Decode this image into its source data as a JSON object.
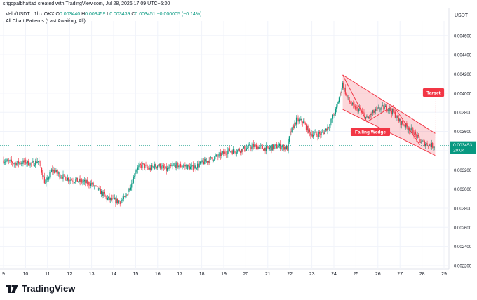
{
  "header": {
    "author_line": "srigopalbhattad created with TradingView.com, Jul 28, 2026 17:09 UTC+5:30"
  },
  "legend": {
    "symbol": "Velo/USDT · 1h · OKX",
    "open_label": "O",
    "open": "0.003440",
    "high_label": "H",
    "high": "0.003459",
    "low_label": "L",
    "low": "0.003439",
    "close_label": "C",
    "close": "0.003451",
    "change": "−0.000005 (−0.14%)",
    "indicator": "All Chart Patterns (Last Awaiting, All)"
  },
  "price_axis": {
    "currency": "USDT",
    "last_price": "0.003453",
    "countdown": "20:04"
  },
  "annotations": {
    "pattern_label": "Falling Wedge",
    "target_label": "Target"
  },
  "branding": {
    "name": "TradingView"
  },
  "colors": {
    "up": "#089981",
    "down": "#f23645",
    "wedge_fill": "#f2364533",
    "label_bg": "#f23645",
    "grid": "#f0f3fa",
    "axis_text": "#131722"
  },
  "chart_data": {
    "type": "candlestick",
    "title": "Velo/USDT · 1h · OKX",
    "ylim": [
      0.0022,
      0.0047
    ],
    "y_ticks": [
      "0.004600",
      "0.004400",
      "0.004200",
      "0.004000",
      "0.003800",
      "0.003600",
      "0.003400",
      "0.003200",
      "0.003000",
      "0.002800",
      "0.002600",
      "0.002400",
      "0.002200"
    ],
    "x_ticks": [
      "9",
      "10",
      "11",
      "12",
      "13",
      "14",
      "15",
      "16",
      "17",
      "18",
      "19",
      "20",
      "21",
      "22",
      "23",
      "24",
      "25",
      "26",
      "27",
      "28",
      "29"
    ],
    "grid": true,
    "close_path": [
      [
        9.0,
        0.0033
      ],
      [
        9.5,
        0.00327
      ],
      [
        10.0,
        0.00328
      ],
      [
        10.3,
        0.00326
      ],
      [
        10.6,
        0.0033
      ],
      [
        10.9,
        0.00305
      ],
      [
        11.0,
        0.0031
      ],
      [
        11.2,
        0.0032
      ],
      [
        11.6,
        0.00314
      ],
      [
        12.0,
        0.0031
      ],
      [
        12.5,
        0.00308
      ],
      [
        13.0,
        0.00305
      ],
      [
        13.4,
        0.00297
      ],
      [
        13.7,
        0.0029
      ],
      [
        14.0,
        0.00288
      ],
      [
        14.3,
        0.00287
      ],
      [
        14.5,
        0.0029
      ],
      [
        14.7,
        0.003
      ],
      [
        14.85,
        0.00308
      ],
      [
        15.0,
        0.0032
      ],
      [
        15.3,
        0.00325
      ],
      [
        15.6,
        0.00321
      ],
      [
        16.0,
        0.00325
      ],
      [
        16.4,
        0.0032
      ],
      [
        16.8,
        0.00325
      ],
      [
        17.2,
        0.00324
      ],
      [
        17.6,
        0.00322
      ],
      [
        18.0,
        0.00327
      ],
      [
        18.4,
        0.00331
      ],
      [
        18.8,
        0.00335
      ],
      [
        19.2,
        0.0034
      ],
      [
        19.6,
        0.0034
      ],
      [
        20.0,
        0.00342
      ],
      [
        20.3,
        0.00345
      ],
      [
        20.7,
        0.00343
      ],
      [
        21.0,
        0.00342
      ],
      [
        21.3,
        0.00344
      ],
      [
        21.6,
        0.00345
      ],
      [
        21.9,
        0.00342
      ],
      [
        22.0,
        0.00357
      ],
      [
        22.3,
        0.00372
      ],
      [
        22.6,
        0.0037
      ],
      [
        22.9,
        0.00358
      ],
      [
        23.2,
        0.00357
      ],
      [
        23.5,
        0.00358
      ],
      [
        23.8,
        0.00367
      ],
      [
        24.1,
        0.00383
      ],
      [
        24.4,
        0.0041
      ],
      [
        24.6,
        0.00395
      ],
      [
        24.9,
        0.00385
      ],
      [
        25.2,
        0.00382
      ],
      [
        25.5,
        0.00373
      ],
      [
        25.8,
        0.0038
      ],
      [
        26.1,
        0.00384
      ],
      [
        26.4,
        0.00385
      ],
      [
        26.7,
        0.0038
      ],
      [
        27.0,
        0.0037
      ],
      [
        27.3,
        0.00365
      ],
      [
        27.6,
        0.0036
      ],
      [
        27.9,
        0.0035
      ],
      [
        28.2,
        0.00347
      ],
      [
        28.5,
        0.00345
      ],
      [
        28.6,
        0.00345
      ]
    ],
    "falling_wedge": {
      "upper_line": [
        [
          24.4,
          0.00419
        ],
        [
          28.6,
          0.00358
        ]
      ],
      "lower_line": [
        [
          24.4,
          0.00383
        ],
        [
          28.6,
          0.00335
        ]
      ],
      "zigzag": [
        [
          24.4,
          0.00419
        ],
        [
          25.5,
          0.0037
        ],
        [
          26.7,
          0.00387
        ],
        [
          27.9,
          0.00346
        ]
      ],
      "target_price": 0.00394
    },
    "last_price": 0.003453
  }
}
